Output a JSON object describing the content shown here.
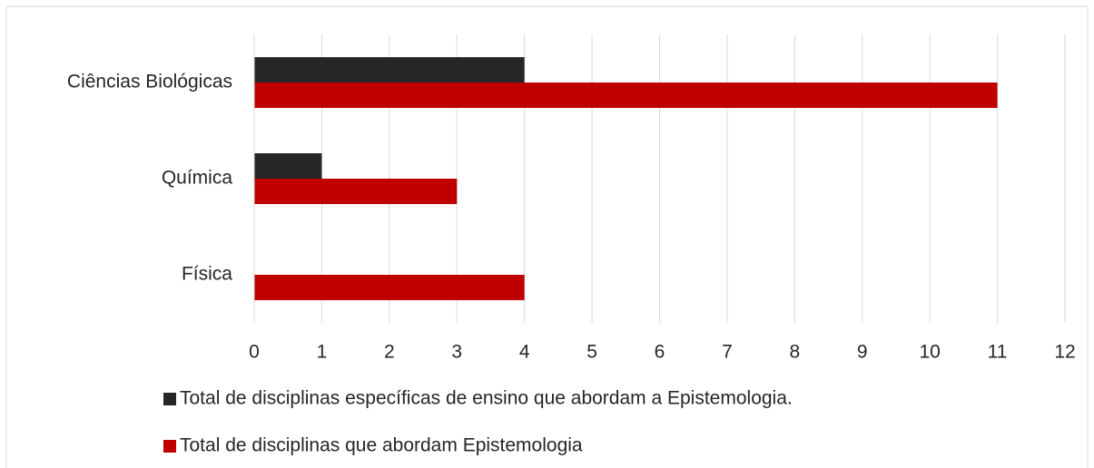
{
  "chart_data": {
    "type": "bar",
    "orientation": "horizontal",
    "categories": [
      "Ciências Biológicas",
      "Química",
      "Física"
    ],
    "series": [
      {
        "name": "Total de disciplinas específicas de ensino que abordam a Epistemologia.",
        "color": "#262626",
        "values": [
          4,
          1,
          0
        ]
      },
      {
        "name": "Total de disciplinas que abordam Epistemologia",
        "color": "#c00000",
        "values": [
          11,
          3,
          4
        ]
      }
    ],
    "xlim": [
      0,
      12
    ],
    "xticks": [
      0,
      1,
      2,
      3,
      4,
      5,
      6,
      7,
      8,
      9,
      10,
      11,
      12
    ],
    "grid": true,
    "legend": "bottom"
  }
}
